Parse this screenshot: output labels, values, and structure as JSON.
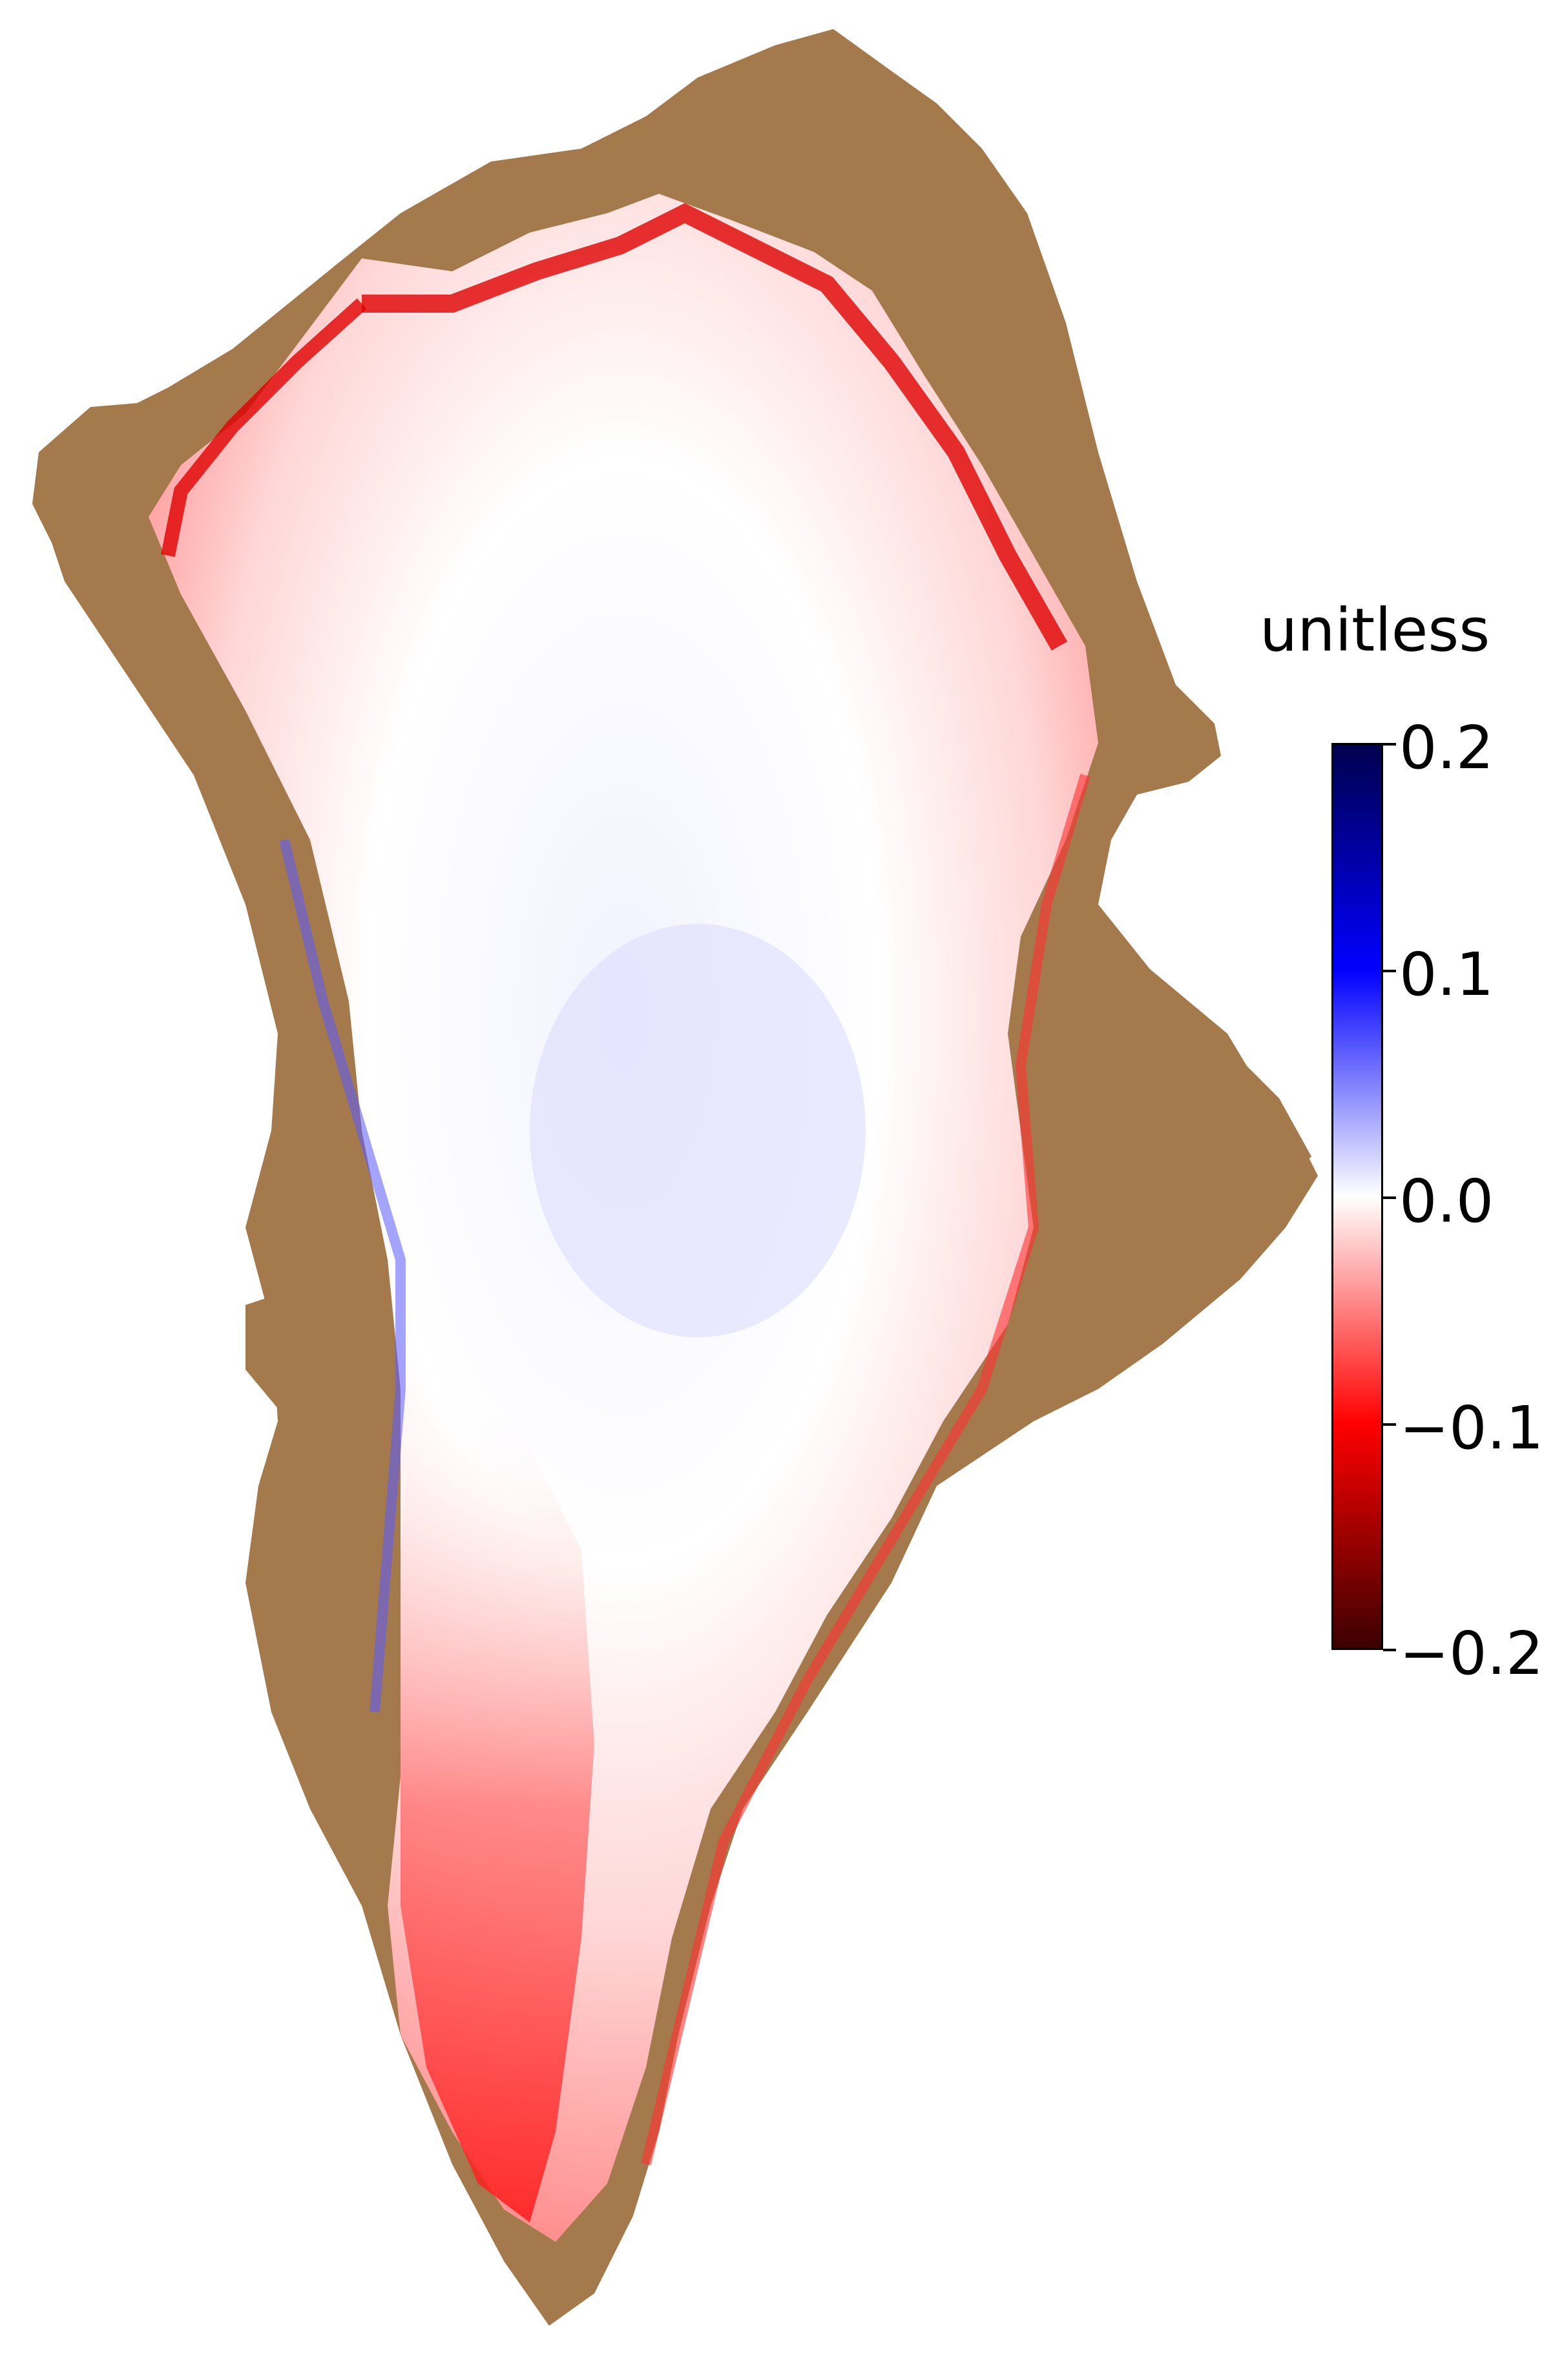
{
  "colorbar": {
    "title": "unitless",
    "min": -0.2,
    "max": 0.2,
    "tick_labels": [
      "0.2",
      "0.1",
      "0.0",
      "−0.1",
      "−0.2"
    ],
    "tick_values": [
      0.2,
      0.1,
      0.0,
      -0.1,
      -0.2
    ],
    "colormap": "seismic",
    "color_stops": [
      "#3a0000",
      "#ff0000",
      "#ffffff",
      "#0000ff",
      "#00004c"
    ]
  },
  "map": {
    "region": "Greenland",
    "land_color": "#a47a4c",
    "background_color": "#ffffff"
  }
}
